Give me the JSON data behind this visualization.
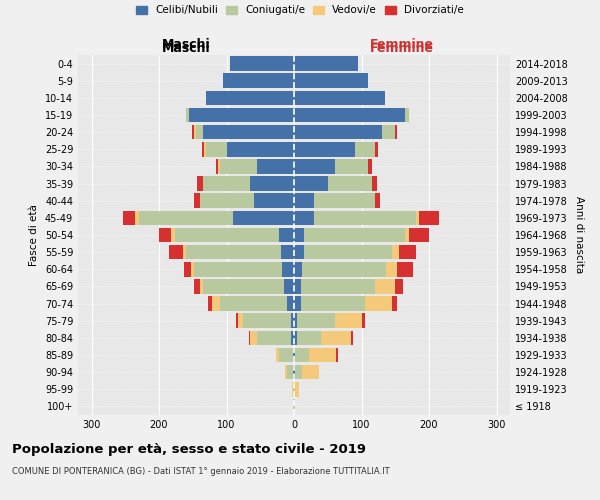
{
  "age_groups": [
    "100+",
    "95-99",
    "90-94",
    "85-89",
    "80-84",
    "75-79",
    "70-74",
    "65-69",
    "60-64",
    "55-59",
    "50-54",
    "45-49",
    "40-44",
    "35-39",
    "30-34",
    "25-29",
    "20-24",
    "15-19",
    "10-14",
    "5-9",
    "0-4"
  ],
  "birth_years": [
    "≤ 1918",
    "1919-1923",
    "1924-1928",
    "1929-1933",
    "1934-1938",
    "1939-1943",
    "1944-1948",
    "1949-1953",
    "1954-1958",
    "1959-1963",
    "1964-1968",
    "1969-1973",
    "1974-1978",
    "1979-1983",
    "1984-1988",
    "1989-1993",
    "1994-1998",
    "1999-2003",
    "2004-2008",
    "2009-2013",
    "2014-2018"
  ],
  "male": {
    "celibi": [
      0,
      0,
      2,
      2,
      5,
      5,
      10,
      15,
      18,
      20,
      22,
      90,
      60,
      65,
      55,
      100,
      135,
      155,
      130,
      105,
      95
    ],
    "coniugati": [
      1,
      2,
      8,
      20,
      50,
      70,
      100,
      120,
      130,
      140,
      155,
      140,
      80,
      70,
      55,
      30,
      10,
      5,
      0,
      0,
      0
    ],
    "vedovi": [
      0,
      1,
      3,
      5,
      10,
      8,
      12,
      5,
      5,
      5,
      5,
      5,
      0,
      0,
      3,
      3,
      3,
      0,
      0,
      0,
      0
    ],
    "divorziati": [
      0,
      0,
      0,
      0,
      2,
      3,
      5,
      8,
      10,
      20,
      18,
      18,
      8,
      8,
      3,
      3,
      3,
      0,
      0,
      0,
      0
    ]
  },
  "female": {
    "nubili": [
      0,
      0,
      2,
      2,
      5,
      5,
      10,
      10,
      12,
      15,
      15,
      30,
      30,
      50,
      60,
      90,
      130,
      165,
      135,
      110,
      95
    ],
    "coniugate": [
      1,
      2,
      10,
      20,
      35,
      55,
      95,
      110,
      125,
      130,
      150,
      150,
      90,
      65,
      50,
      30,
      20,
      5,
      0,
      0,
      0
    ],
    "vedove": [
      1,
      5,
      25,
      40,
      45,
      40,
      40,
      30,
      15,
      10,
      5,
      5,
      0,
      0,
      0,
      0,
      0,
      0,
      0,
      0,
      0
    ],
    "divorziate": [
      0,
      0,
      0,
      3,
      3,
      5,
      8,
      12,
      25,
      25,
      30,
      30,
      8,
      8,
      5,
      5,
      3,
      0,
      0,
      0,
      0
    ]
  },
  "colors": {
    "celibi": "#4472a8",
    "coniugati": "#b8c9a0",
    "vedovi": "#f5c97a",
    "divorziati": "#d63030"
  },
  "title": "Popolazione per età, sesso e stato civile - 2019",
  "subtitle": "COMUNE DI PONTERANICA (BG) - Dati ISTAT 1° gennaio 2019 - Elaborazione TUTTITALIA.IT",
  "xlabel_left": "Maschi",
  "xlabel_right": "Femmine",
  "ylabel_left": "Fasce di età",
  "ylabel_right": "Anni di nascita",
  "xlim": 320,
  "legend_labels": [
    "Celibi/Nubili",
    "Coniugati/e",
    "Vedovi/e",
    "Divorziati/e"
  ],
  "background_color": "#f0f0f0",
  "plot_bg": "#e8e8e8"
}
